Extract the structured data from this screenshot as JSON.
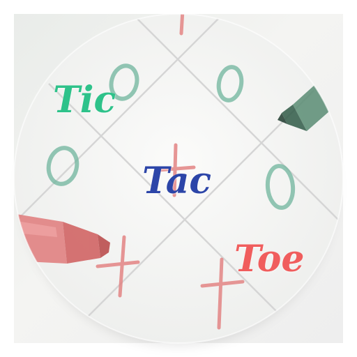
{
  "logo": {
    "word1": "Tic",
    "word2": "Tac",
    "word3": "Toe"
  },
  "colors": {
    "word1": "#2ec28a",
    "word2": "#2c45a8",
    "word3": "#f05d5d",
    "circle_marks": "#4fa88a",
    "cross_marks": "#e06a6a",
    "green_marker": "#3e7a5e",
    "red_marker": "#d85a5a"
  },
  "icons": [
    "tic-tac-toe-board-icon",
    "green-marker-icon",
    "red-marker-icon",
    "o-mark-icon",
    "x-mark-icon"
  ]
}
